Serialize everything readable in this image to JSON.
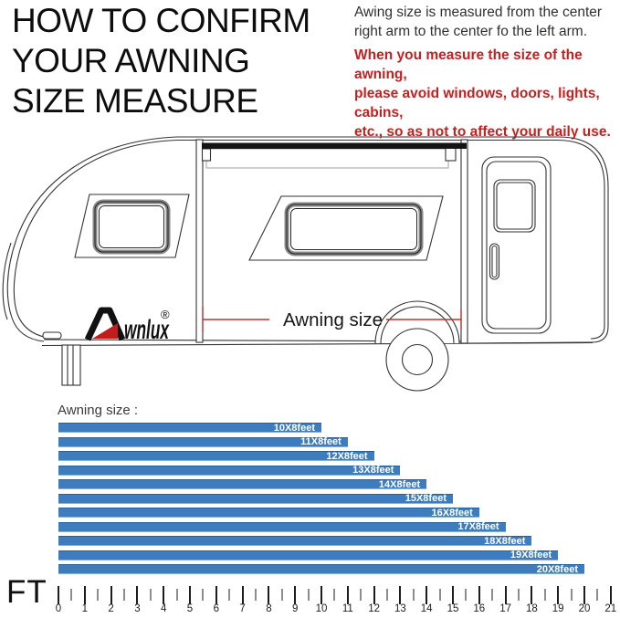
{
  "header": {
    "title_lines": [
      "HOW TO CONFIRM",
      "YOUR AWNING",
      "SIZE MEASURE"
    ],
    "note_lines": [
      "Awing size is measured from the center",
      "right arm to the center fo the left arm."
    ],
    "warning_lines": [
      "When you measure the size of the awning,",
      "please avoid windows, doors, lights, cabins,",
      "etc., so as not to affect your daily use."
    ],
    "warning_color": "#c42020"
  },
  "diagram": {
    "brand": "wnlux",
    "registered": "®",
    "dimension_label": "Awning size",
    "dimension_color": "#c53030",
    "line_color": "#333333",
    "awning_bar_color": "#141414"
  },
  "chart_data": {
    "type": "bar",
    "orientation": "horizontal",
    "title": "Awning size :",
    "categories": [
      "10X8feet",
      "11X8feet",
      "12X8feet",
      "13X8feet",
      "14X8feet",
      "15X8feet",
      "16X8feet",
      "17X8feet",
      "18X8feet",
      "19X8feet",
      "20X8feet"
    ],
    "values": [
      10,
      11,
      12,
      13,
      14,
      15,
      16,
      17,
      18,
      19,
      20
    ],
    "unit": "feet",
    "axis_label": "FT",
    "x_ticks": [
      0,
      1,
      2,
      3,
      4,
      5,
      6,
      7,
      8,
      9,
      10,
      11,
      12,
      13,
      14,
      15,
      16,
      17,
      18,
      19,
      20,
      21
    ],
    "xlim": [
      0,
      21.5
    ],
    "minor_tick_step": 0.5,
    "bar_color": "#3d7dbf",
    "bar_label_color": "#ffffff",
    "grid": false,
    "legend": false
  }
}
